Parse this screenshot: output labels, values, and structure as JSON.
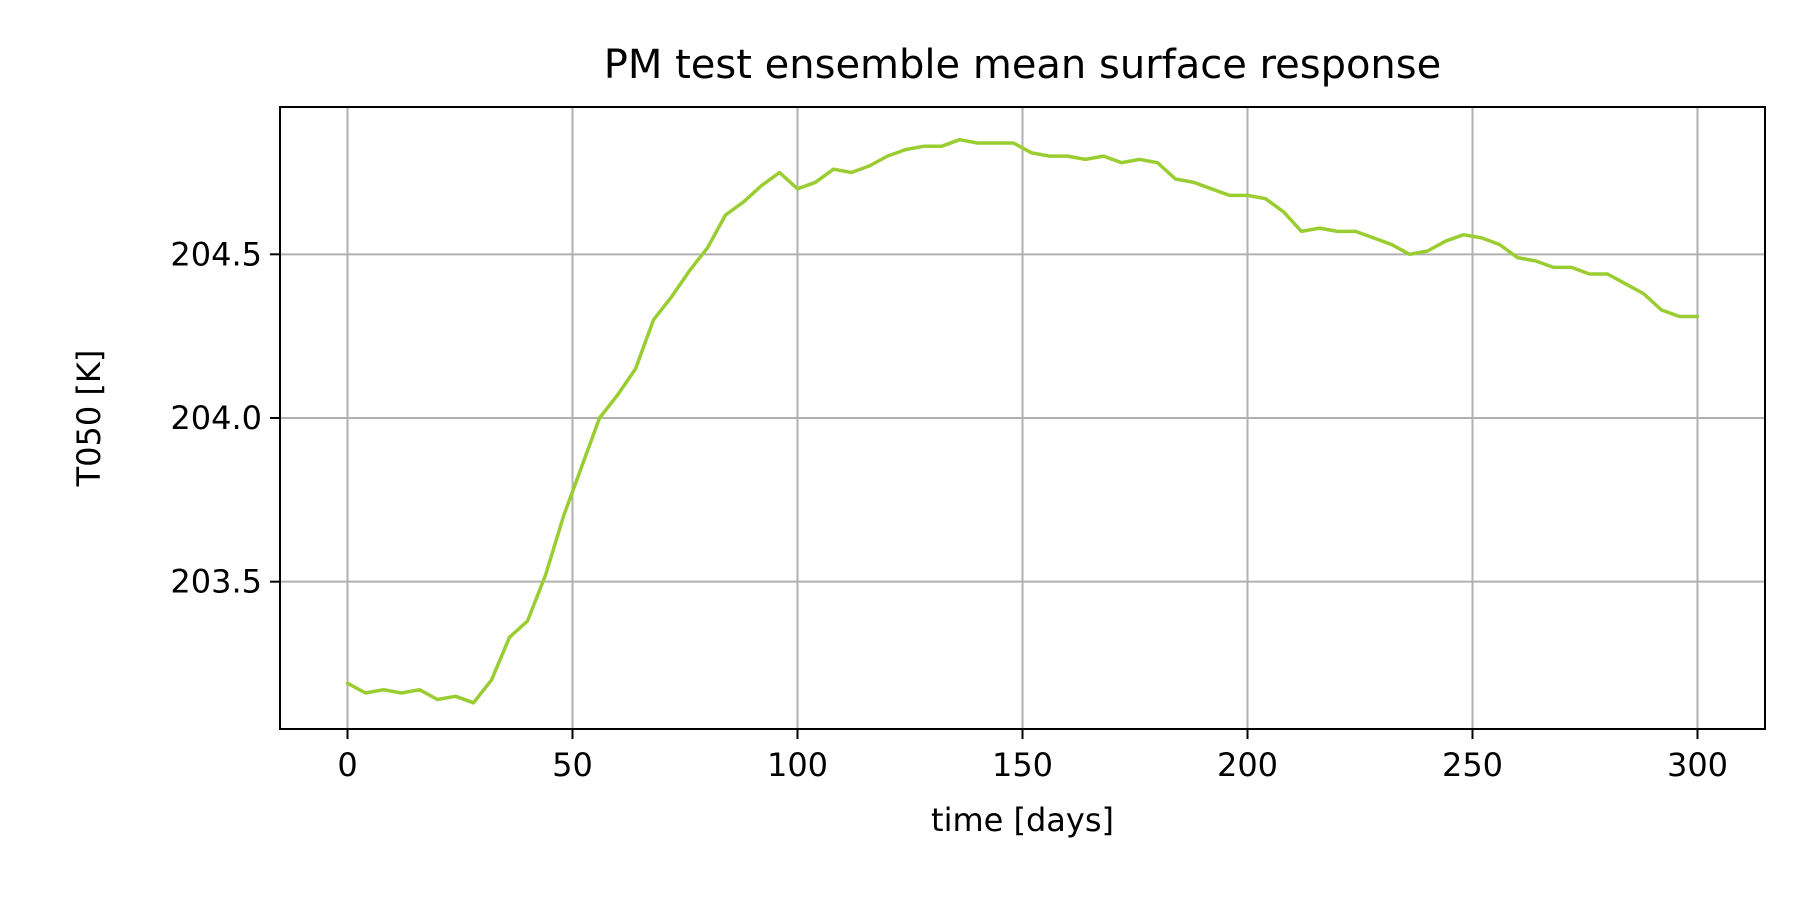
{
  "chart_data": {
    "type": "line",
    "title": "PM test ensemble mean surface response",
    "xlabel": "time [days]",
    "ylabel": "T050 [K]",
    "xlim": [
      -15,
      315
    ],
    "ylim": [
      203.05,
      204.95
    ],
    "x_ticks": [
      0,
      50,
      100,
      150,
      200,
      250,
      300
    ],
    "y_ticks": [
      203.5,
      204.0,
      204.5
    ],
    "x_tick_labels": [
      "0",
      "50",
      "100",
      "150",
      "200",
      "250",
      "300"
    ],
    "y_tick_labels": [
      "203.5",
      "204.0",
      "204.5"
    ],
    "grid": true,
    "legend": "none",
    "series": [
      {
        "color": "#9acd32",
        "x": [
          0,
          4,
          8,
          12,
          16,
          20,
          24,
          28,
          32,
          36,
          40,
          44,
          48,
          52,
          56,
          60,
          64,
          68,
          72,
          76,
          80,
          84,
          88,
          92,
          96,
          100,
          104,
          108,
          112,
          116,
          120,
          124,
          128,
          132,
          136,
          140,
          144,
          148,
          152,
          156,
          160,
          164,
          168,
          172,
          176,
          180,
          184,
          188,
          192,
          196,
          200,
          204,
          208,
          212,
          216,
          220,
          224,
          228,
          232,
          236,
          240,
          244,
          248,
          252,
          256,
          260,
          264,
          268,
          272,
          276,
          280,
          284,
          288,
          292,
          296,
          300
        ],
        "y": [
          203.19,
          203.16,
          203.17,
          203.16,
          203.17,
          203.14,
          203.15,
          203.13,
          203.2,
          203.33,
          203.38,
          203.52,
          203.7,
          203.85,
          204.0,
          204.07,
          204.15,
          204.3,
          204.37,
          204.45,
          204.52,
          204.62,
          204.66,
          204.71,
          204.75,
          204.7,
          204.72,
          204.76,
          204.75,
          204.77,
          204.8,
          204.82,
          204.83,
          204.83,
          204.85,
          204.84,
          204.84,
          204.84,
          204.81,
          204.8,
          204.8,
          204.79,
          204.8,
          204.78,
          204.79,
          204.78,
          204.73,
          204.72,
          204.7,
          204.68,
          204.68,
          204.67,
          204.63,
          204.57,
          204.58,
          204.57,
          204.57,
          204.55,
          204.53,
          204.5,
          204.51,
          204.54,
          204.56,
          204.55,
          204.53,
          204.49,
          204.48,
          204.46,
          204.46,
          204.44,
          204.44,
          204.41,
          204.38,
          204.33,
          204.31,
          204.31
        ]
      }
    ]
  }
}
